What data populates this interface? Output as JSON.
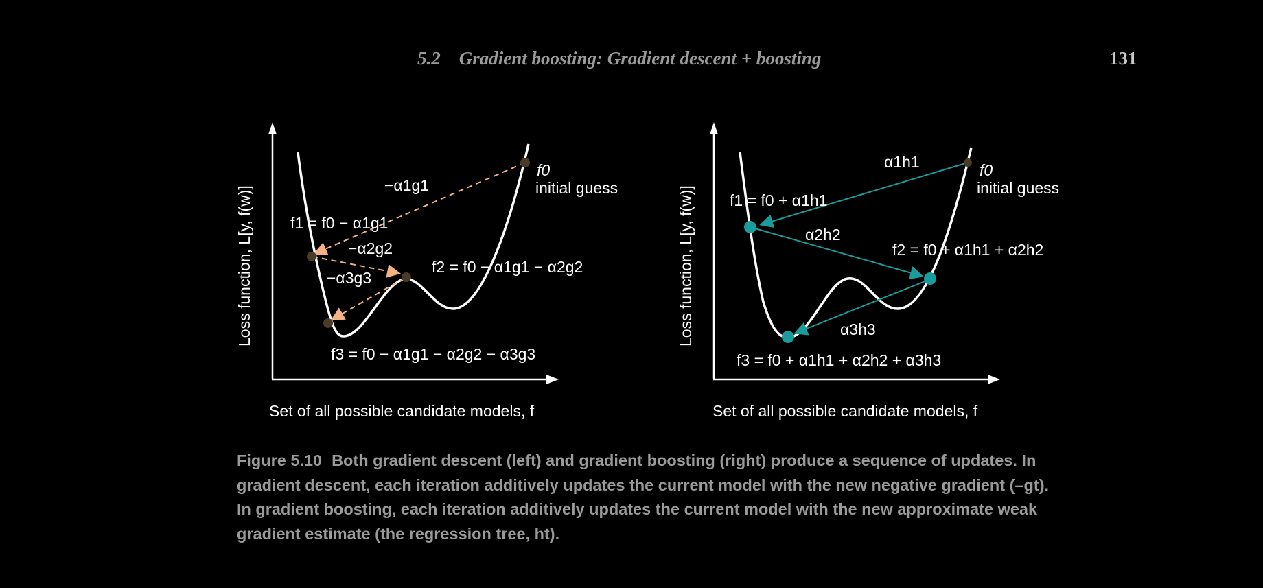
{
  "header": {
    "section": "5.2    Gradient boosting: Gradient descent + boosting",
    "page_number": "131"
  },
  "figure": {
    "left_panel": {
      "y_axis_label": "Loss function, L[y, f(w)]",
      "x_axis_label": "Set of all possible candidate models, f",
      "f0_label": "f0",
      "f0_note": "initial guess",
      "step1_label": "−α1g1",
      "f1_label": "f1 = f0 − α1g1",
      "step2_label": "−α2g2",
      "f2_label": "f2 = f0 − α1g1 − α2g2",
      "step3_label": "−α3g3",
      "f3_label": "f3 = f0 − α1g1 − α2g2 − α3g3",
      "arrow_color": "#f4b183",
      "point_color": "#4a3a28"
    },
    "right_panel": {
      "y_axis_label": "Loss function, L[y, f(w)]",
      "x_axis_label": "Set of all possible candidate models, f",
      "f0_label": "f0",
      "f0_note": "initial guess",
      "step1_label": "α1h1",
      "f1_label": "f1 = f0 + α1h1",
      "step2_label": "α2h2",
      "f2_label": "f2 = f0 + α1h1 + α2h2",
      "step3_label": "α3h3",
      "f3_label": "f3 = f0 + α1h1 + α2h2 + α3h3",
      "arrow_color": "#1a9c9c",
      "point_color": "#1a9c9c"
    }
  },
  "caption": {
    "label": "Figure 5.10",
    "text": "Both gradient descent (left) and gradient boosting (right) produce a sequence of updates. In gradient descent, each iteration additively updates the current model with the new negative gradient (–gt). In gradient boosting, each iteration additively updates the current model with the new approximate weak gradient estimate (the regression tree, ht)."
  }
}
